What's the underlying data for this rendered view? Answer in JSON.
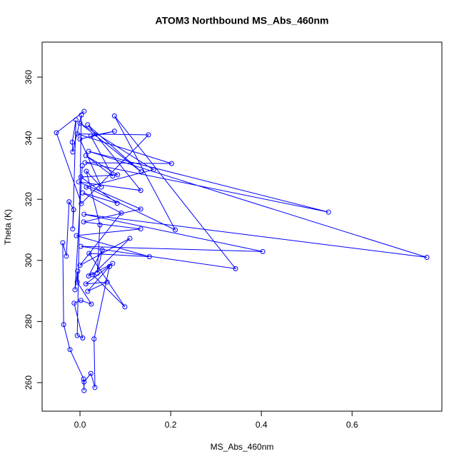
{
  "chart_data": {
    "type": "line",
    "marker": "circle",
    "title": "ATOM3 Northbound MS_Abs_460nm",
    "xlabel": "MS_Abs_460nm",
    "ylabel": "Theta (K)",
    "xlim": [
      -0.0835,
      0.798
    ],
    "ylim": [
      250.65,
      371.45
    ],
    "xticks": [
      {
        "value": 0,
        "label": "0.0"
      },
      0.2,
      0.4,
      0.6
    ],
    "yticks": [
      260,
      280,
      300,
      320,
      340,
      360
    ],
    "series": [
      {
        "color": "#0000ff",
        "x": [
          0.009,
          -0.052,
          0.003,
          0.151,
          -0.006,
          0.202,
          0.011,
          0.548,
          0.019,
          0.765,
          0.009,
          0.403,
          0.002,
          0.343,
          0.076,
          0.21,
          0.014,
          0.162,
          0.0,
          0.135,
          0.017,
          0.134,
          -0.003,
          0.134,
          0.008,
          0.134,
          -0.008,
          0.153,
          0.02,
          0.099,
          0.028,
          0.11,
          0.0,
          0.091,
          0.006,
          0.082,
          0.002,
          0.083,
          0.013,
          0.072,
          0.024,
          0.076,
          0.0,
          0.047,
          0.014,
          0.044,
          0.038,
          0.049,
          0.019,
          0.072,
          0.013,
          0.06,
          0.017,
          0.065,
          0.031,
          0.033,
          0.024,
          0.009,
          0.009,
          0.008,
          -0.022,
          -0.036,
          -0.038,
          -0.03,
          -0.024,
          -0.014,
          -0.016,
          -0.009,
          -0.017,
          -0.016,
          0.003,
          -0.006,
          0.006,
          -0.013,
          0.002,
          0.025,
          -0.006,
          -0.005,
          -0.011,
          0.005
        ],
        "values": [
          348.8,
          341.8,
          318.6,
          341.1,
          341.4,
          331.7,
          332.0,
          315.8,
          335.7,
          301.0,
          315.1,
          302.9,
          304.6,
          297.3,
          347.3,
          310.0,
          324.0,
          329.7,
          344.9,
          329.0,
          344.4,
          322.9,
          325.7,
          316.8,
          312.6,
          310.3,
          308.1,
          301.2,
          302.3,
          284.8,
          295.3,
          307.2,
          298.4,
          315.5,
          322.1,
          318.7,
          327.3,
          328.0,
          334.3,
          327.6,
          340.7,
          342.3,
          339.7,
          324.0,
          329.2,
          311.6,
          295.8,
          303.4,
          294.9,
          299.0,
          292.3,
          292.9,
          289.9,
          298.0,
          274.3,
          258.4,
          263.0,
          260.2,
          257.4,
          261.2,
          270.8,
          279.0,
          305.8,
          301.4,
          319.2,
          316.6,
          310.3,
          346.0,
          338.7,
          335.5,
          347.6,
          275.4,
          274.6,
          286.0,
          286.9,
          285.7,
          292.9,
          296.5,
          290.4,
          331.0
        ]
      }
    ]
  }
}
